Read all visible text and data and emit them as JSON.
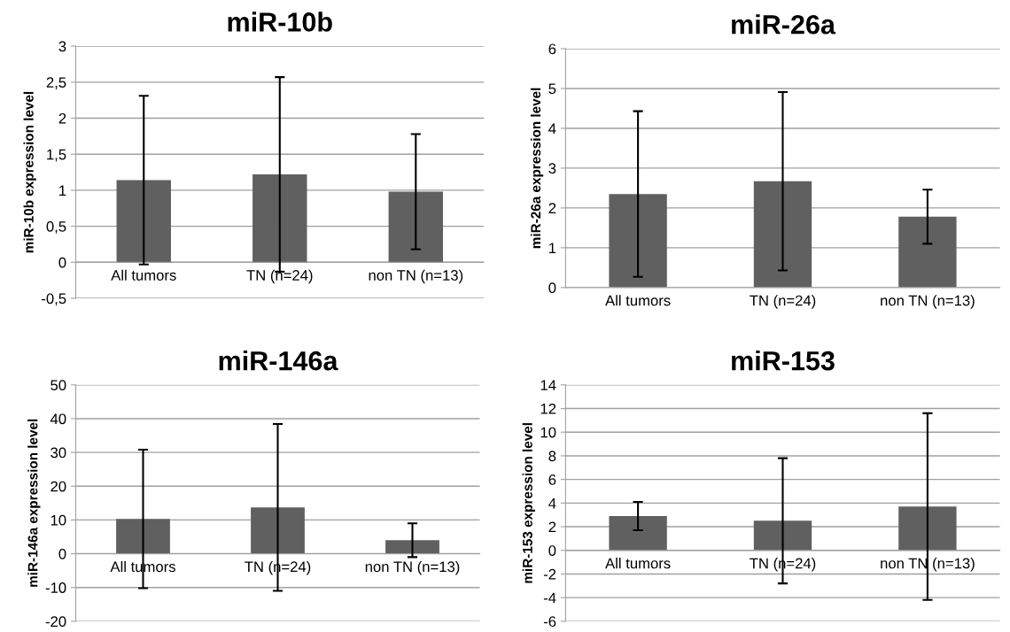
{
  "chart_data": [
    {
      "type": "bar",
      "title": "miR-10b",
      "ylabel": "miR-10b expression level",
      "categories": [
        "All tumors",
        "TN (n=24)",
        "non TN (n=13)"
      ],
      "color": "#606060",
      "values": [
        1.14,
        1.22,
        0.98
      ],
      "errors": [
        1.17,
        1.35,
        0.8
      ],
      "ylim": [
        -0.5,
        3
      ],
      "yticks": [
        {
          "value": -0.5,
          "label": "-0,5"
        },
        0,
        {
          "value": 0.5,
          "label": "0,5"
        },
        1,
        {
          "value": 1.5,
          "label": "1,5"
        },
        2,
        {
          "value": 2.5,
          "label": "2,5"
        },
        3
      ],
      "grid": "y"
    },
    {
      "type": "bar",
      "title": "miR-26a",
      "ylabel": "miR-26a expression level",
      "categories": [
        "All tumors",
        "TN (n=24)",
        "non TN (n=13)"
      ],
      "color": "#606060",
      "values": [
        2.35,
        2.67,
        1.78
      ],
      "errors": [
        2.08,
        2.24,
        0.68
      ],
      "ylim": [
        0,
        6
      ],
      "yticks": [
        0,
        1,
        2,
        3,
        4,
        5,
        6
      ],
      "grid": "y"
    },
    {
      "type": "bar",
      "title": "miR-146a",
      "ylabel": "miR-146a expression level",
      "categories": [
        "All tumors",
        "TN (n=24)",
        "non TN (n=13)"
      ],
      "color": "#606060",
      "values": [
        10.3,
        13.7,
        4.0
      ],
      "errors": [
        20.5,
        24.7,
        5.0
      ],
      "ylim": [
        -20,
        50
      ],
      "yticks": [
        -20,
        -10,
        0,
        10,
        20,
        30,
        40,
        50
      ],
      "grid": "y"
    },
    {
      "type": "bar",
      "title": "miR-153",
      "ylabel": "miR-153 expression level",
      "categories": [
        "All tumors",
        "TN (n=24)",
        "non TN (n=13)"
      ],
      "color": "#606060",
      "values": [
        2.9,
        2.5,
        3.7
      ],
      "errors": [
        1.2,
        5.3,
        7.9
      ],
      "ylim": [
        -6,
        14
      ],
      "yticks": [
        -6,
        -4,
        -2,
        0,
        2,
        4,
        6,
        8,
        10,
        12,
        14
      ],
      "grid": "y"
    }
  ]
}
